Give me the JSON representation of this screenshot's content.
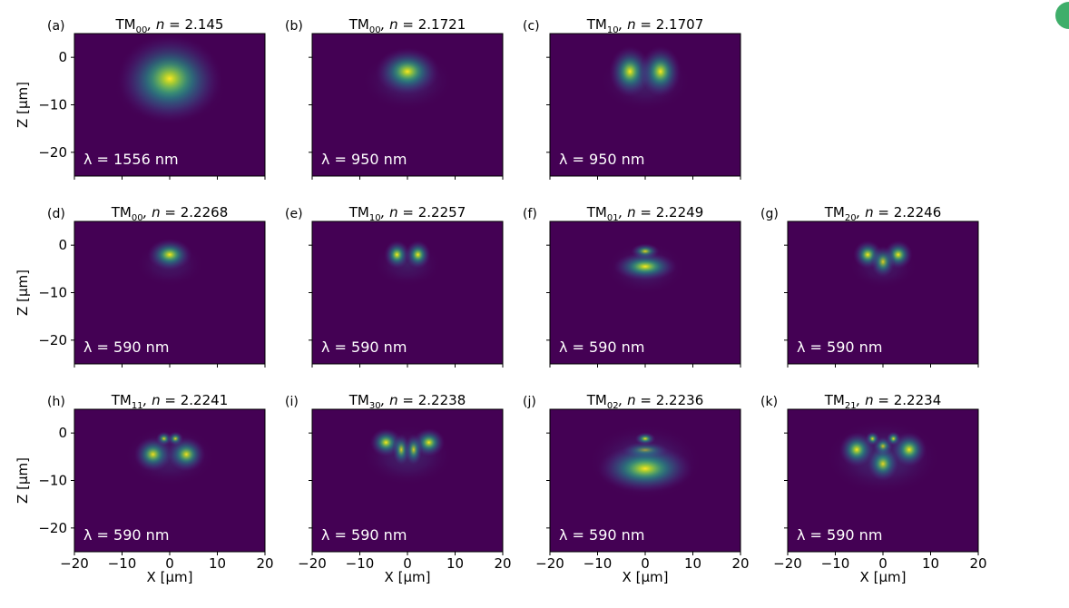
{
  "colors": {
    "background": "#440154",
    "badge": "#3fae6a",
    "viridis": [
      "#440154",
      "#482878",
      "#3e4989",
      "#31688e",
      "#26828e",
      "#1f9e89",
      "#35b779",
      "#6ece58",
      "#b5de2b",
      "#fde725"
    ]
  },
  "labels": {
    "xlabel": "X [μm]",
    "ylabel": "Z [μm]",
    "n_prefix": ", n = "
  },
  "chart_data": {
    "type": "heatmap",
    "xlim": [
      -20,
      20
    ],
    "ylim": [
      -25,
      5
    ],
    "xticks": [
      -20,
      -10,
      0,
      10,
      20
    ],
    "xtick_labels": [
      "−20",
      "−10",
      "0",
      "10",
      "20"
    ],
    "yticks": [
      0,
      -10,
      -20
    ],
    "ytick_labels": [
      "0",
      "−10",
      "−20"
    ],
    "panels": [
      {
        "letter": "(a)",
        "mode": "TM",
        "sub": "00",
        "n": "2.145",
        "wavelength": "λ = 1556 nm",
        "lobes": [
          [
            0,
            -4.5,
            6.5,
            5.5,
            1.0
          ]
        ],
        "halo": 1.0
      },
      {
        "letter": "(b)",
        "mode": "TM",
        "sub": "00",
        "n": "2.1721",
        "wavelength": "λ = 950 nm",
        "lobes": [
          [
            0,
            -3,
            4,
            3,
            1.0
          ]
        ],
        "halo": 0.8
      },
      {
        "letter": "(c)",
        "mode": "TM",
        "sub": "10",
        "n": "2.1707",
        "wavelength": "λ = 950 nm",
        "lobes": [
          [
            -3.2,
            -3,
            2.6,
            3.2,
            1.0
          ],
          [
            3.2,
            -3,
            2.6,
            3.2,
            1.0
          ]
        ],
        "halo": 0.8
      },
      null,
      {
        "letter": "(d)",
        "mode": "TM",
        "sub": "00",
        "n": "2.2268",
        "wavelength": "λ = 590 nm",
        "lobes": [
          [
            0,
            -2,
            2.8,
            2,
            1.0
          ]
        ],
        "halo": 0.6
      },
      {
        "letter": "(e)",
        "mode": "TM",
        "sub": "10",
        "n": "2.2257",
        "wavelength": "λ = 590 nm",
        "lobes": [
          [
            -2.2,
            -2,
            1.6,
            1.8,
            1.0
          ],
          [
            2.2,
            -2,
            1.6,
            1.8,
            1.0
          ]
        ],
        "halo": 0.6
      },
      {
        "letter": "(f)",
        "mode": "TM",
        "sub": "01",
        "n": "2.2249",
        "wavelength": "λ = 590 nm",
        "lobes": [
          [
            0,
            -1.3,
            1.8,
            1.0,
            0.9
          ],
          [
            0,
            -4.5,
            4.0,
            1.8,
            1.0
          ]
        ],
        "halo": 0.7
      },
      {
        "letter": "(g)",
        "mode": "TM",
        "sub": "20",
        "n": "2.2246",
        "wavelength": "λ = 590 nm",
        "lobes": [
          [
            -3.2,
            -2,
            1.8,
            1.8,
            1.0
          ],
          [
            3.2,
            -2,
            1.8,
            1.8,
            1.0
          ],
          [
            0,
            -3.5,
            1.5,
            2.0,
            0.85
          ]
        ],
        "halo": 0.6
      },
      {
        "letter": "(h)",
        "mode": "TM",
        "sub": "11",
        "n": "2.2241",
        "wavelength": "λ = 590 nm",
        "lobes": [
          [
            -1.2,
            -1.2,
            1.0,
            0.9,
            0.9
          ],
          [
            1.2,
            -1.2,
            1.0,
            0.9,
            0.9
          ],
          [
            -3.5,
            -4.5,
            2.4,
            2.2,
            0.95
          ],
          [
            3.5,
            -4.5,
            2.4,
            2.2,
            0.95
          ]
        ],
        "halo": 0.8
      },
      {
        "letter": "(i)",
        "mode": "TM",
        "sub": "30",
        "n": "2.2238",
        "wavelength": "λ = 590 nm",
        "lobes": [
          [
            -4.5,
            -2,
            2.0,
            1.8,
            1.0
          ],
          [
            4.5,
            -2,
            2.0,
            1.8,
            1.0
          ],
          [
            -1.3,
            -3.5,
            1.1,
            2.0,
            0.85
          ],
          [
            1.3,
            -3.5,
            1.1,
            2.0,
            0.85
          ]
        ],
        "halo": 0.8
      },
      {
        "letter": "(j)",
        "mode": "TM",
        "sub": "02",
        "n": "2.2236",
        "wavelength": "λ = 590 nm",
        "lobes": [
          [
            0,
            -1.2,
            1.3,
            0.8,
            0.95
          ],
          [
            0,
            -3.6,
            3.0,
            1.0,
            0.75
          ],
          [
            0,
            -7.5,
            6.0,
            3.0,
            1.0
          ]
        ],
        "halo": 1.0
      },
      {
        "letter": "(k)",
        "mode": "TM",
        "sub": "21",
        "n": "2.2234",
        "wavelength": "λ = 590 nm",
        "lobes": [
          [
            -2.2,
            -1.2,
            0.9,
            0.9,
            0.95
          ],
          [
            2.2,
            -1.2,
            0.9,
            0.9,
            0.95
          ],
          [
            0,
            -2.8,
            1.2,
            1.2,
            0.85
          ],
          [
            -5.5,
            -3.5,
            2.2,
            2.2,
            1.0
          ],
          [
            5.5,
            -3.5,
            2.2,
            2.2,
            1.0
          ],
          [
            0,
            -6.5,
            2.0,
            2.2,
            0.9
          ]
        ],
        "halo": 1.0
      }
    ]
  }
}
